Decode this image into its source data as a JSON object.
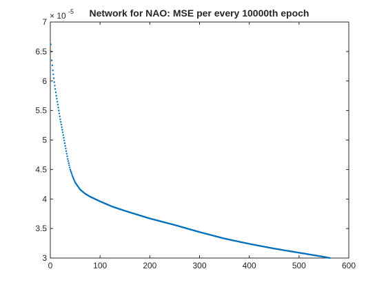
{
  "chart_data": {
    "type": "scatter",
    "title": "Network for NAO: MSE per every 10000th epoch",
    "xlabel": "",
    "ylabel": "",
    "y_exponent": {
      "base": "× 10",
      "power": "-5"
    },
    "xlim": [
      0,
      600
    ],
    "ylim": [
      3,
      7
    ],
    "x_ticks": [
      {
        "value": 0,
        "label": "0"
      },
      {
        "value": 100,
        "label": "100"
      },
      {
        "value": 200,
        "label": "200"
      },
      {
        "value": 300,
        "label": "300"
      },
      {
        "value": 400,
        "label": "400"
      },
      {
        "value": 500,
        "label": "500"
      },
      {
        "value": 600,
        "label": "600"
      }
    ],
    "y_ticks": [
      {
        "value": 3,
        "label": "3"
      },
      {
        "value": 3.5,
        "label": "3.5"
      },
      {
        "value": 4,
        "label": "4"
      },
      {
        "value": 4.5,
        "label": "4.5"
      },
      {
        "value": 5,
        "label": "5"
      },
      {
        "value": 5.5,
        "label": "5.5"
      },
      {
        "value": 6,
        "label": "6"
      },
      {
        "value": 6.5,
        "label": "6.5"
      },
      {
        "value": 7,
        "label": "7"
      }
    ],
    "grid": false,
    "legend": "none",
    "series": [
      {
        "color": "#0072BD",
        "x": [
          1,
          2,
          3,
          5,
          8,
          12,
          16,
          20,
          25,
          30,
          35,
          40,
          45,
          50,
          60,
          70,
          80,
          100,
          125,
          150,
          200,
          250,
          300,
          350,
          400,
          450,
          500,
          550,
          562
        ],
        "y": [
          6.62,
          6.5,
          6.35,
          6.18,
          5.98,
          5.75,
          5.55,
          5.35,
          5.13,
          4.9,
          4.68,
          4.5,
          4.38,
          4.28,
          4.16,
          4.09,
          4.04,
          3.96,
          3.87,
          3.8,
          3.67,
          3.56,
          3.44,
          3.33,
          3.24,
          3.16,
          3.09,
          3.02,
          3.0
        ]
      }
    ]
  }
}
